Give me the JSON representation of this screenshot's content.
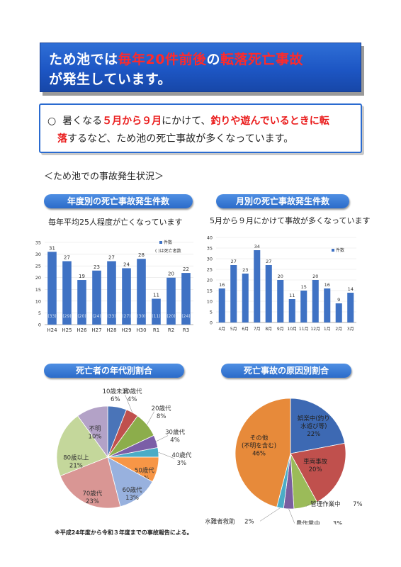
{
  "banner": {
    "line1_a": "ため池では",
    "line1_b": "毎年20件前後",
    "line1_c": "の",
    "line1_d": "転落死亡事故",
    "line2": "が発生しています。"
  },
  "notice": {
    "bullet": "○",
    "p1": "暑くなる",
    "p2": "５月から９月",
    "p3": "にかけて、",
    "p4": "釣りや遊んでいるときに転",
    "p5": "落",
    "p6": "するなど、ため池の死亡事故が多くなっています。"
  },
  "section_title": "＜ため池での事故発生状況＞",
  "charts_titles": {
    "yearly": "年度別の死亡事故発生件数",
    "monthly": "月別の死亡事故発生件数",
    "age": "死亡者の年代別割合",
    "cause": "死亡事故の原因別割合"
  },
  "captions": {
    "yearly": "毎年平均25人程度が亡くなっています",
    "monthly": "5月から９月にかけて事故が多くなっています"
  },
  "footnote": "※平成24年度から令和３年度までの事故報告による。",
  "chart_data": [
    {
      "type": "bar",
      "title": "年度別の死亡事故発生件数",
      "categories": [
        "H24",
        "H25",
        "H26",
        "H27",
        "H28",
        "H29",
        "H30",
        "R1",
        "R2",
        "R3"
      ],
      "series": [
        {
          "name": "件数",
          "values": [
            31,
            27,
            19,
            23,
            27,
            24,
            28,
            11,
            20,
            22
          ]
        },
        {
          "name": "( )は死亡者数",
          "values": [
            33,
            29,
            20,
            24,
            33,
            27,
            30,
            11,
            20,
            24
          ]
        }
      ],
      "ylim": [
        0,
        35
      ],
      "yticks": [
        0,
        5,
        10,
        15,
        20,
        25,
        30,
        35
      ],
      "legend": "top-right",
      "colors": {
        "bar": "#3f72c4",
        "bar_light": "#6a98db"
      }
    },
    {
      "type": "bar",
      "title": "月別の死亡事故発生件数",
      "categories": [
        "4月",
        "5月",
        "6月",
        "7月",
        "8月",
        "9月",
        "10月",
        "11月",
        "12月",
        "1月",
        "2月",
        "3月"
      ],
      "series": [
        {
          "name": "件数",
          "values": [
            16,
            27,
            23,
            34,
            27,
            20,
            11,
            15,
            20,
            16,
            9,
            14
          ]
        }
      ],
      "ylim": [
        0,
        40
      ],
      "yticks": [
        0,
        5,
        10,
        15,
        20,
        25,
        30,
        35,
        40
      ],
      "legend": "top-right",
      "colors": {
        "bar": "#3f72c4"
      }
    },
    {
      "type": "pie",
      "title": "死亡者の年代別割合",
      "labels": [
        "10歳未満",
        "10歳代",
        "20歳代",
        "30歳代",
        "40歳代",
        "50歳代",
        "60歳代",
        "70歳代",
        "80歳以上",
        "不明"
      ],
      "values": [
        6,
        4,
        8,
        4,
        3,
        8,
        13,
        23,
        21,
        10
      ],
      "colors": [
        "#4a74b8",
        "#c0504d",
        "#8cad4b",
        "#7b5ea7",
        "#4bacc6",
        "#f79646",
        "#98b1de",
        "#d99694",
        "#c4d79b",
        "#b3a2c7"
      ]
    },
    {
      "type": "pie",
      "title": "死亡事故の原因別割合",
      "labels": [
        "娯楽中(釣り\n水遊び等)",
        "車両事故",
        "管理作業中",
        "農作業中",
        "水難者救助",
        "その他\n(不明を含む)"
      ],
      "display_labels": [
        [
          "娯楽中(釣り",
          "水遊び等)",
          "22%"
        ],
        [
          "車両事故",
          "20%"
        ],
        [
          "管理作業中",
          "7%"
        ],
        [
          "農作業中",
          "3%"
        ],
        [
          "水難者救助",
          "2%"
        ],
        [
          "その他",
          "(不明を含む)",
          "46%"
        ]
      ],
      "values": [
        22,
        20,
        7,
        3,
        2,
        46
      ],
      "colors": [
        "#3d69b3",
        "#c0504d",
        "#9bbb59",
        "#7a5ea0",
        "#4bacc6",
        "#e78a3a"
      ]
    }
  ]
}
